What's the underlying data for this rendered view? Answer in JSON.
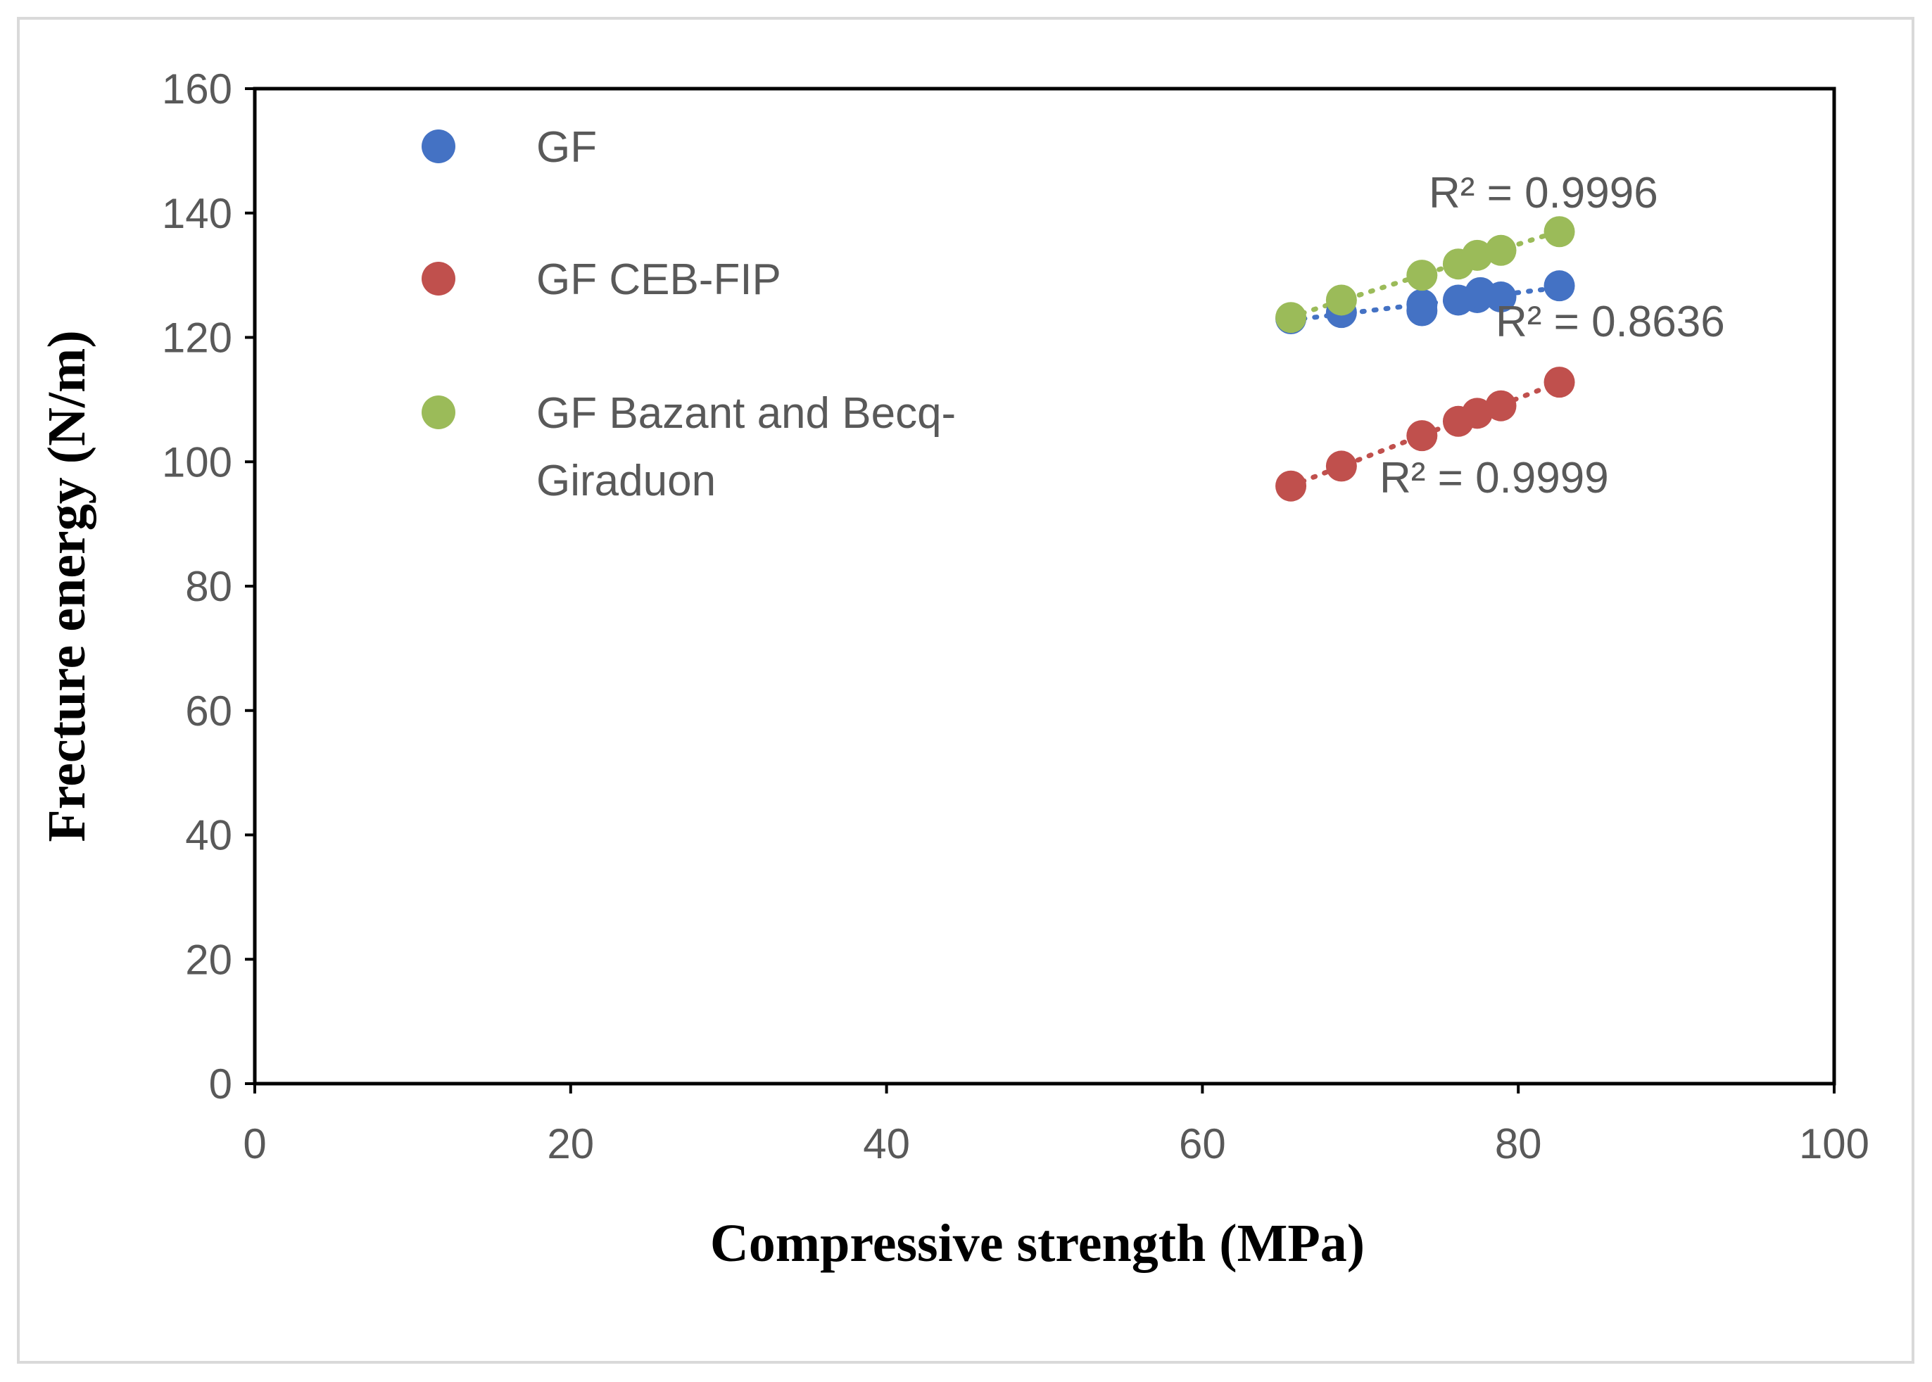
{
  "chart_data": {
    "type": "scatter",
    "title": "",
    "xlabel": "Compressive strength (MPa)",
    "ylabel": "Frecture energy (N/m)",
    "xlim": [
      0,
      100
    ],
    "ylim": [
      0,
      160
    ],
    "xticks": [
      0,
      20,
      40,
      60,
      80,
      100
    ],
    "yticks": [
      0,
      20,
      40,
      60,
      80,
      100,
      120,
      140,
      160
    ],
    "grid": false,
    "legend_position": "top-left",
    "series": [
      {
        "name": "GF",
        "legend_lines": [
          "GF"
        ],
        "color": "#4472c4",
        "x": [
          65.6,
          68.8,
          73.9,
          73.9,
          76.2,
          77.4,
          77.6,
          78.9,
          82.6
        ],
        "y": [
          123.0,
          124.0,
          124.3,
          125.3,
          126.0,
          126.4,
          127.2,
          126.5,
          128.3
        ],
        "trendline": "linear",
        "r2_label": "R² = 0.8636"
      },
      {
        "name": "GF CEB-FIP",
        "legend_lines": [
          "GF CEB-FIP"
        ],
        "color": "#c0504d",
        "x": [
          65.6,
          68.8,
          73.9,
          76.2,
          77.4,
          78.9,
          82.6
        ],
        "y": [
          96.1,
          99.3,
          104.2,
          106.5,
          107.8,
          109.0,
          112.8
        ],
        "trendline": "linear",
        "r2_label": "R² = 0.9999"
      },
      {
        "name": "GF Bazant and Becq-Giraduon",
        "legend_lines": [
          "GF Bazant and Becq-",
          "Giraduon"
        ],
        "color": "#9bbb59",
        "x": [
          65.6,
          68.8,
          73.9,
          76.2,
          77.4,
          78.9,
          82.6
        ],
        "y": [
          123.2,
          126.0,
          130.0,
          131.8,
          133.2,
          134.0,
          137.0
        ],
        "trendline": "linear",
        "r2_label": "R² = 0.9996"
      }
    ]
  }
}
